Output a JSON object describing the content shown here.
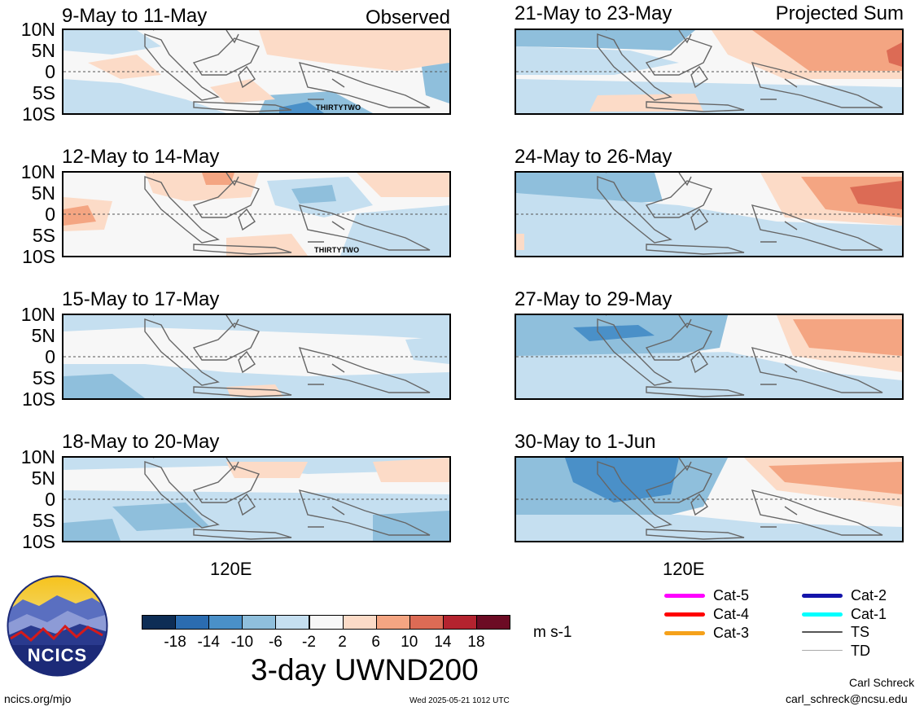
{
  "panels": [
    {
      "title": "9-May to 11-May",
      "tag": "Observed",
      "storm": "THIRTYTWO"
    },
    {
      "title": "12-May to 14-May",
      "tag": "",
      "storm": "THIRTYTWO"
    },
    {
      "title": "15-May to 17-May",
      "tag": "",
      "storm": ""
    },
    {
      "title": "18-May to 20-May",
      "tag": "",
      "storm": ""
    },
    {
      "title": "21-May to 23-May",
      "tag": "Projected Sum",
      "storm": ""
    },
    {
      "title": "24-May to 26-May",
      "tag": "",
      "storm": ""
    },
    {
      "title": "27-May to 29-May",
      "tag": "",
      "storm": ""
    },
    {
      "title": "30-May to 1-Jun",
      "tag": "",
      "storm": ""
    }
  ],
  "lat_labels": [
    "10N",
    "5N",
    "0",
    "5S",
    "10S"
  ],
  "x_label": "120E",
  "colorbar": {
    "colors": [
      "#0d2d55",
      "#2b6cb0",
      "#4a90c8",
      "#8fbfdc",
      "#c5dff0",
      "#f7f7f7",
      "#fcdbc7",
      "#f4a582",
      "#dc6b55",
      "#b4232f",
      "#6c0b24"
    ],
    "labels": [
      "-18",
      "-14",
      "-10",
      "-6",
      "-2",
      "2",
      "6",
      "10",
      "14",
      "18"
    ],
    "units": "m s-1"
  },
  "title": "3-day UWND200",
  "legend": [
    {
      "label": "Cat-5",
      "color": "#ff00ff"
    },
    {
      "label": "Cat-4",
      "color": "#ff0000"
    },
    {
      "label": "Cat-3",
      "color": "#f5a11a"
    },
    {
      "label": "Cat-2",
      "color": "#1414aa"
    },
    {
      "label": "Cat-1",
      "color": "#00ffff"
    },
    {
      "label": "TS",
      "color": "#555555"
    },
    {
      "label": "TD",
      "color": "#aaaaaa"
    }
  ],
  "logo_text": "NCICS",
  "footer": {
    "left": "ncics.org/mjo",
    "center": "Wed 2025-05-21 1012 UTC",
    "author": "Carl Schreck",
    "email": "carl_schreck@ncsu.edu"
  }
}
